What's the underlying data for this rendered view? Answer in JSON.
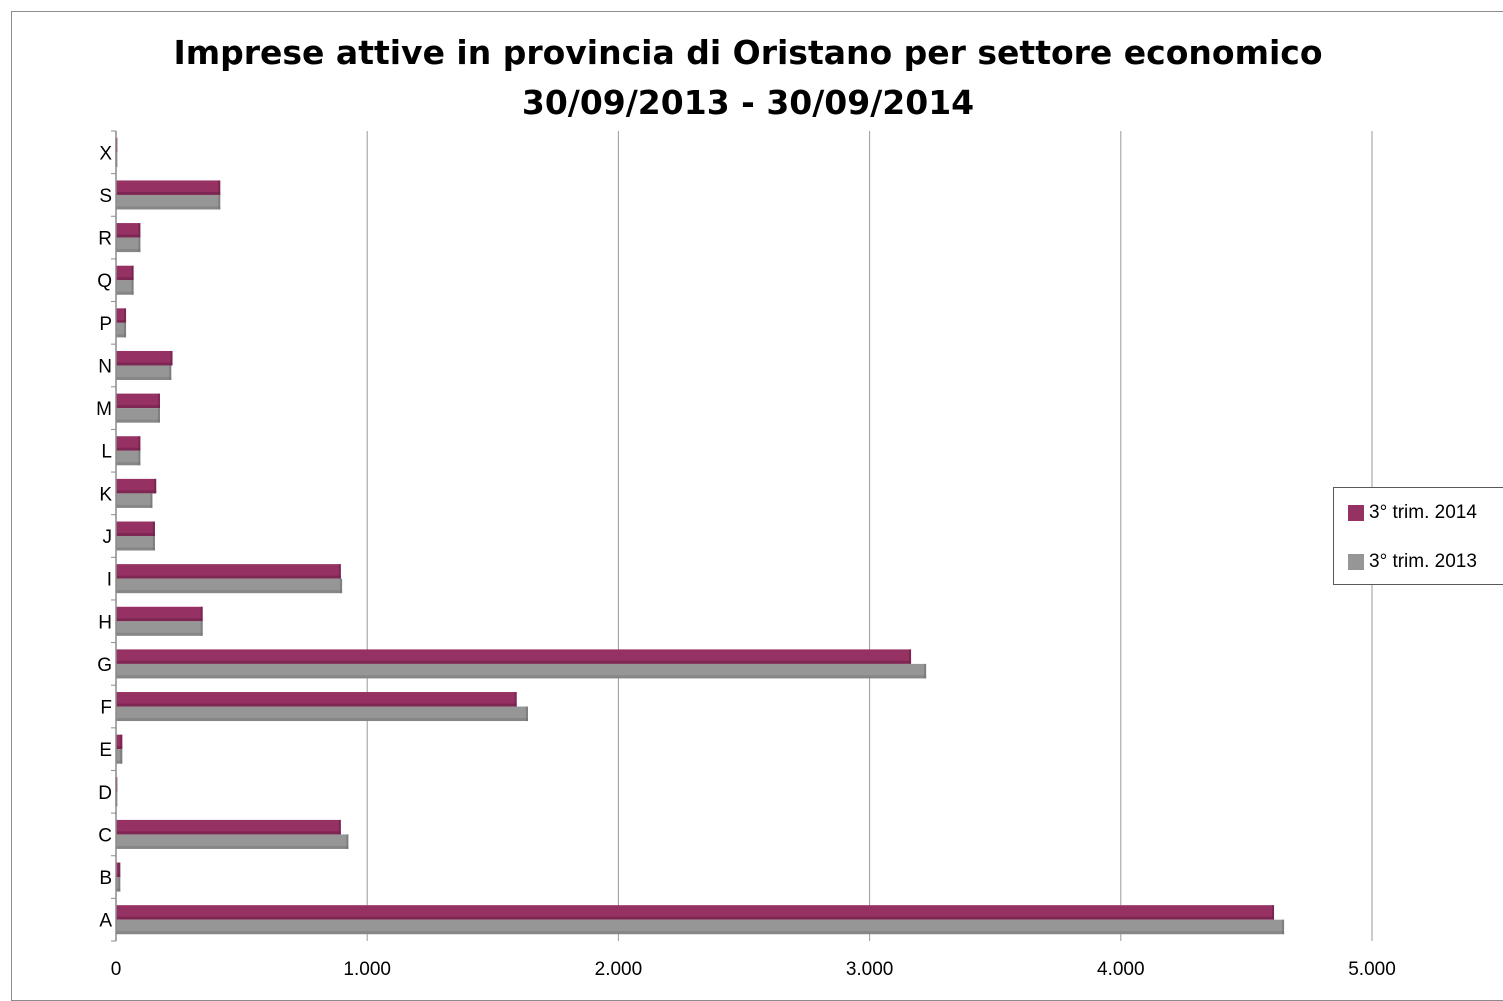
{
  "chart_data": {
    "type": "bar",
    "orientation": "horizontal",
    "title": [
      "Imprese attive in provincia di Oristano per settore economico",
      "30/09/2013 - 30/09/2014"
    ],
    "categories": [
      "A",
      "B",
      "C",
      "D",
      "E",
      "F",
      "G",
      "H",
      "I",
      "J",
      "K",
      "L",
      "M",
      "N",
      "P",
      "Q",
      "R",
      "S",
      "X"
    ],
    "series": [
      {
        "name": "3° trim. 2014",
        "color": "#953163",
        "values": [
          4610,
          17,
          895,
          5,
          25,
          1595,
          3165,
          345,
          895,
          155,
          160,
          97,
          175,
          225,
          40,
          70,
          97,
          415,
          5
        ]
      },
      {
        "name": "3° trim. 2013",
        "color": "#969696",
        "values": [
          4650,
          17,
          925,
          5,
          25,
          1640,
          3225,
          345,
          900,
          155,
          145,
          97,
          175,
          220,
          40,
          70,
          97,
          415,
          5
        ]
      }
    ],
    "xlim": [
      0,
      5000
    ],
    "xticks": [
      0,
      1000,
      2000,
      3000,
      4000,
      5000
    ],
    "xtick_labels": [
      "0",
      "1.000",
      "2.000",
      "3.000",
      "4.000",
      "5.000"
    ],
    "grid": "vertical",
    "legend_position": "right"
  }
}
